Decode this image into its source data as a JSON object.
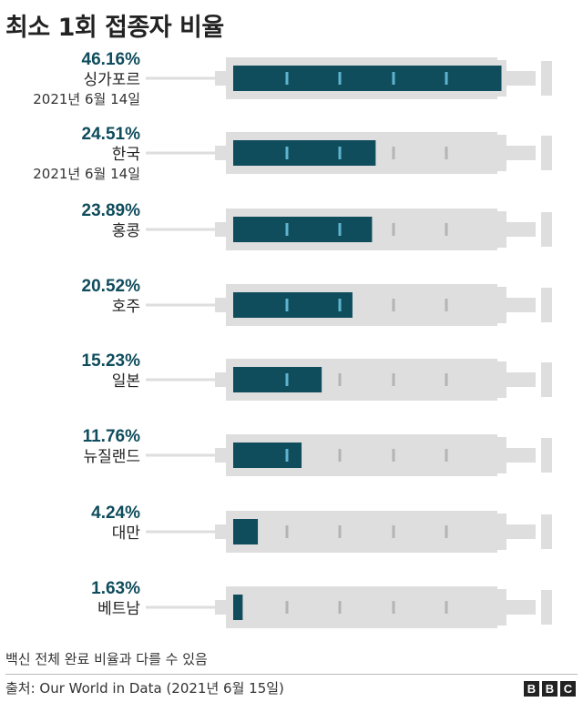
{
  "title": "최소 1회 접종자 비율",
  "chart_data": {
    "type": "bar",
    "title": "최소 1회 접종자 비율",
    "unit": "%",
    "ylim": [
      0,
      50
    ],
    "colors": {
      "fill": "#0f4c5c",
      "syringe": "#dedede",
      "tick_on_fill": "#5fb3cf",
      "tick_on_empty": "#b4b4b4"
    },
    "rows": [
      {
        "pct_label": "46.16%",
        "value": 46.16,
        "country": "싱가포르",
        "date": "2021년 6월 14일"
      },
      {
        "pct_label": "24.51%",
        "value": 24.51,
        "country": "한국",
        "date": "2021년 6월 14일"
      },
      {
        "pct_label": "23.89%",
        "value": 23.89,
        "country": "홍콩",
        "date": ""
      },
      {
        "pct_label": "20.52%",
        "value": 20.52,
        "country": "호주",
        "date": ""
      },
      {
        "pct_label": "15.23%",
        "value": 15.23,
        "country": "일본",
        "date": ""
      },
      {
        "pct_label": "11.76%",
        "value": 11.76,
        "country": "뉴질랜드",
        "date": ""
      },
      {
        "pct_label": "4.24%",
        "value": 4.24,
        "country": "대만",
        "date": ""
      },
      {
        "pct_label": "1.63%",
        "value": 1.63,
        "country": "베트남",
        "date": ""
      }
    ]
  },
  "footnote": "백신 전체 완료 비율과 다를 수 있음",
  "source": "출처: Our World in Data (2021년 6월 15일)",
  "logo": [
    "B",
    "B",
    "C"
  ]
}
